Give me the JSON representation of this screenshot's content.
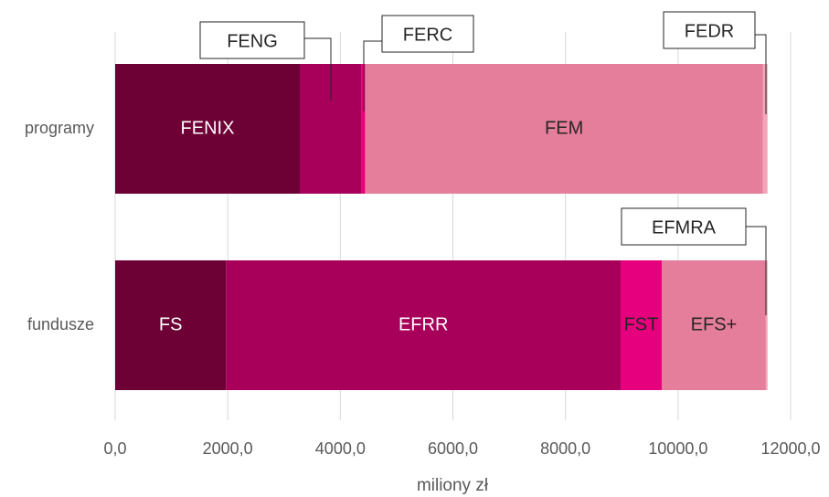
{
  "chart_data": {
    "type": "stacked-bar-horizontal",
    "x_label": "miliony zł",
    "xlim": [
      0,
      12000
    ],
    "xticks": [
      {
        "value": 0,
        "label": "0,0"
      },
      {
        "value": 2000,
        "label": "2000,0"
      },
      {
        "value": 4000,
        "label": "4000,0"
      },
      {
        "value": 6000,
        "label": "6000,0"
      },
      {
        "value": 8000,
        "label": "8000,0"
      },
      {
        "value": 10000,
        "label": "10000,0"
      },
      {
        "value": 12000,
        "label": "12000,0"
      }
    ],
    "grid": true,
    "bars": [
      {
        "category": "programy",
        "segments": [
          {
            "name": "FENIX",
            "value": 3280,
            "color": "#6d0035"
          },
          {
            "name": "FENG",
            "value": 1100,
            "color": "#a8005a"
          },
          {
            "name": "FERC",
            "value": 60,
            "color": "#e6007e"
          },
          {
            "name": "FEM",
            "value": 7070,
            "color": "#e57e9a"
          },
          {
            "name": "FEDR",
            "value": 80,
            "color": "#f2a5b8"
          }
        ]
      },
      {
        "category": "fundusze",
        "segments": [
          {
            "name": "FS",
            "value": 1970,
            "color": "#6d0035"
          },
          {
            "name": "EFRR",
            "value": 7010,
            "color": "#a8005a"
          },
          {
            "name": "FST",
            "value": 730,
            "color": "#e6007e"
          },
          {
            "name": "EFS+",
            "value": 1850,
            "color": "#e57e9a"
          },
          {
            "name": "EFMRA",
            "value": 30,
            "color": "#f2a5b8"
          }
        ]
      }
    ]
  }
}
